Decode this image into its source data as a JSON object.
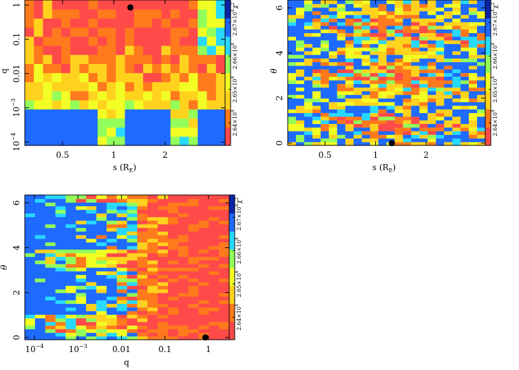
{
  "chart_data": [
    {
      "type": "heatmap",
      "panel": "top-left",
      "xlabel": "s (R_E)",
      "ylabel": "q",
      "xscale": "log",
      "yscale": "log",
      "xlim": [
        0.3,
        4.5
      ],
      "ylim": [
        8e-05,
        1.4
      ],
      "xticks": [
        {
          "value": 0.5,
          "label": "0.5"
        },
        {
          "value": 1,
          "label": "1"
        },
        {
          "value": 2,
          "label": "2"
        }
      ],
      "yticks": [
        {
          "value": 1,
          "label": "1"
        },
        {
          "value": 0.1,
          "label": "0.1"
        },
        {
          "value": 0.01,
          "label": "0.01"
        },
        {
          "value": 0.001,
          "label": "10^-3"
        },
        {
          "value": 0.0001,
          "label": "10^-4"
        }
      ],
      "grid": {
        "cols": 22,
        "rows": 16
      },
      "best_fit_marker": {
        "s": 1.25,
        "q": 0.85
      },
      "colorbar": {
        "label": "χ²",
        "ticks": [
          "2.64×10^4",
          "2.65×10^4",
          "2.66×10^4",
          "2.67×10^4"
        ],
        "colormap": [
          "#ff4a4a",
          "#ff7a1c",
          "#ffd21e",
          "#f2ff24",
          "#93ff5a",
          "#27d9ff",
          "#1f6bff",
          "#0a24a8"
        ]
      }
    },
    {
      "type": "heatmap",
      "panel": "top-right",
      "xlabel": "s (R_E)",
      "ylabel": "θ",
      "xscale": "log",
      "yscale": "linear",
      "xlim": [
        0.3,
        4.5
      ],
      "ylim": [
        -0.1,
        6.35
      ],
      "xticks": [
        {
          "value": 0.5,
          "label": "0.5"
        },
        {
          "value": 1,
          "label": "1"
        },
        {
          "value": 2,
          "label": "2"
        }
      ],
      "yticks": [
        {
          "value": 0,
          "label": "0"
        },
        {
          "value": 2,
          "label": "2"
        },
        {
          "value": 4,
          "label": "4"
        },
        {
          "value": 6,
          "label": "6"
        }
      ],
      "grid": {
        "cols": 24,
        "rows": 40
      },
      "best_fit_marker": {
        "s": 1.25,
        "theta": 0.0
      },
      "colorbar": {
        "label": "χ²",
        "ticks": [
          "2.64×10^4",
          "2.65×10^4",
          "2.66×10^4",
          "2.67×10^4"
        ],
        "colormap": [
          "#ff4a4a",
          "#ff7a1c",
          "#ffd21e",
          "#f2ff24",
          "#93ff5a",
          "#27d9ff",
          "#1f6bff",
          "#0a24a8"
        ]
      }
    },
    {
      "type": "heatmap",
      "panel": "bottom-left",
      "xlabel": "q",
      "ylabel": "θ",
      "xscale": "log",
      "yscale": "linear",
      "xlim": [
        6e-05,
        3
      ],
      "ylim": [
        -0.1,
        6.35
      ],
      "xticks": [
        {
          "value": 0.0001,
          "label": "10^-4"
        },
        {
          "value": 0.001,
          "label": "10^-3"
        },
        {
          "value": 0.01,
          "label": "0.01"
        },
        {
          "value": 0.1,
          "label": "0.1"
        },
        {
          "value": 1,
          "label": "1"
        }
      ],
      "yticks": [
        {
          "value": 0,
          "label": "0"
        },
        {
          "value": 2,
          "label": "2"
        },
        {
          "value": 4,
          "label": "4"
        },
        {
          "value": 6,
          "label": "6"
        }
      ],
      "grid": {
        "cols": 20,
        "rows": 40
      },
      "best_fit_marker": {
        "q": 0.85,
        "theta": 0.0
      },
      "colorbar": {
        "label": "χ²",
        "ticks": [
          "2.64×10^4",
          "2.65×10^4",
          "2.66×10^4",
          "2.67×10^4"
        ],
        "colormap": [
          "#ff4a4a",
          "#ff7a1c",
          "#ffd21e",
          "#f2ff24",
          "#93ff5a",
          "#27d9ff",
          "#1f6bff",
          "#0a24a8"
        ]
      }
    }
  ]
}
